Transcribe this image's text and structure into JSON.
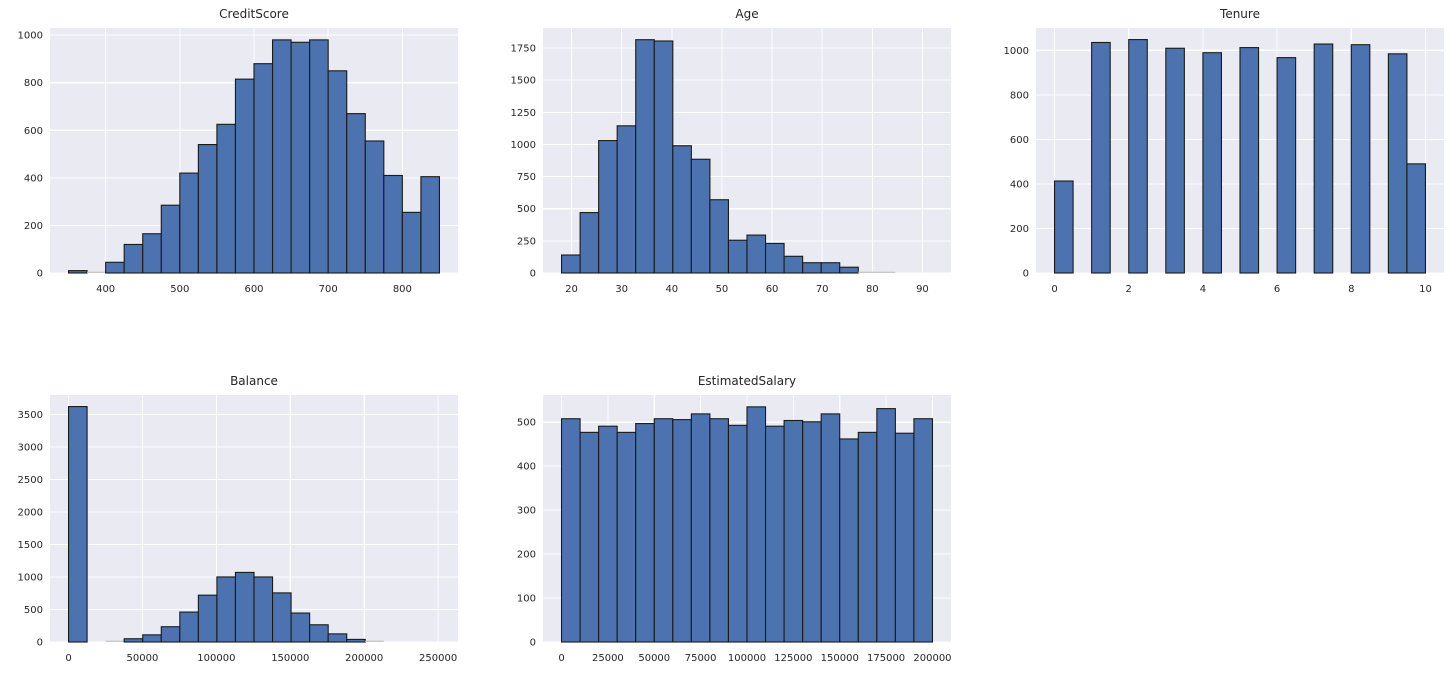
{
  "figure": {
    "kind": "pandas-hist-grid",
    "background": "#ffffff",
    "rows": 2,
    "cols": 3
  },
  "style": {
    "axes_background": "#EAEAF2",
    "grid_color": "#FFFFFF",
    "bar_fill": "#4C72B0",
    "bar_edge": "#1A1A1A",
    "tiny_bar_color": "#C8C8C8",
    "text_color": "#262626",
    "tick_font_size": 10,
    "title_font_size": 12
  },
  "chart_data": [
    {
      "type": "bar",
      "subtype": "histogram",
      "title": "CreditScore",
      "bin_start": 350,
      "bin_width": 25,
      "counts": [
        10,
        2,
        45,
        120,
        165,
        285,
        420,
        540,
        625,
        815,
        880,
        980,
        970,
        980,
        850,
        670,
        555,
        410,
        255,
        405
      ],
      "xlim": [
        325,
        875
      ],
      "ylim": [
        0,
        1030
      ],
      "xticks": [
        400,
        500,
        600,
        700,
        800
      ],
      "xtick_labels": [
        "400",
        "500",
        "600",
        "700",
        "800"
      ],
      "yticks": [
        0,
        200,
        400,
        600,
        800,
        1000
      ],
      "ytick_labels": [
        "0",
        "200",
        "400",
        "600",
        "800",
        "1000"
      ],
      "grid": true,
      "legend": false
    },
    {
      "type": "bar",
      "subtype": "histogram",
      "title": "Age",
      "bin_start": 18,
      "bin_width": 3.7,
      "counts": [
        140,
        470,
        1030,
        1145,
        1815,
        1805,
        990,
        885,
        570,
        255,
        295,
        230,
        130,
        80,
        80,
        45,
        3,
        2,
        0,
        0
      ],
      "xlim": [
        14.3,
        95.7
      ],
      "ylim": [
        0,
        1906
      ],
      "xticks": [
        20,
        30,
        40,
        50,
        60,
        70,
        80,
        90
      ],
      "xtick_labels": [
        "20",
        "30",
        "40",
        "50",
        "60",
        "70",
        "80",
        "90"
      ],
      "yticks": [
        0,
        250,
        500,
        750,
        1000,
        1250,
        1500,
        1750
      ],
      "ytick_labels": [
        "0",
        "250",
        "500",
        "750",
        "1000",
        "1250",
        "1500",
        "1750"
      ],
      "grid": true,
      "legend": false
    },
    {
      "type": "bar",
      "subtype": "histogram",
      "title": "Tenure",
      "bin_start": 0,
      "bin_width": 0.5,
      "counts": [
        413,
        0,
        1035,
        0,
        1048,
        0,
        1009,
        0,
        989,
        0,
        1012,
        0,
        967,
        0,
        1028,
        0,
        1025,
        0,
        984,
        490
      ],
      "xlim": [
        -0.5,
        10.5
      ],
      "ylim": [
        0,
        1100
      ],
      "xticks": [
        0,
        2,
        4,
        6,
        8,
        10
      ],
      "xtick_labels": [
        "0",
        "2",
        "4",
        "6",
        "8",
        "10"
      ],
      "yticks": [
        0,
        200,
        400,
        600,
        800,
        1000
      ],
      "ytick_labels": [
        "0",
        "200",
        "400",
        "600",
        "800",
        "1000"
      ],
      "grid": true,
      "legend": false
    },
    {
      "type": "bar",
      "subtype": "histogram",
      "title": "Balance",
      "bin_start": 0,
      "bin_width": 12545,
      "counts": [
        3620,
        0,
        15,
        50,
        110,
        235,
        460,
        720,
        1000,
        1070,
        1000,
        755,
        445,
        265,
        125,
        40,
        18,
        0,
        0,
        0
      ],
      "xlim": [
        -12545,
        263443
      ],
      "ylim": [
        0,
        3798
      ],
      "xticks": [
        0,
        50000,
        100000,
        150000,
        200000,
        250000
      ],
      "xtick_labels": [
        "0",
        "50000",
        "100000",
        "150000",
        "200000",
        "250000"
      ],
      "yticks": [
        0,
        500,
        1000,
        1500,
        2000,
        2500,
        3000,
        3500
      ],
      "ytick_labels": [
        "0",
        "500",
        "1000",
        "1500",
        "2000",
        "2500",
        "3000",
        "3500"
      ],
      "grid": true,
      "legend": false
    },
    {
      "type": "bar",
      "subtype": "histogram",
      "title": "EstimatedSalary",
      "bin_start": 0,
      "bin_width": 10000,
      "counts": [
        508,
        477,
        491,
        477,
        497,
        508,
        506,
        519,
        508,
        493,
        535,
        491,
        504,
        501,
        519,
        462,
        477,
        531,
        475,
        508
      ],
      "xlim": [
        -9988,
        209990
      ],
      "ylim": [
        0,
        562
      ],
      "xticks": [
        0,
        25000,
        50000,
        75000,
        100000,
        125000,
        150000,
        175000,
        200000
      ],
      "xtick_labels": [
        "0",
        "25000",
        "50000",
        "75000",
        "100000",
        "125000",
        "150000",
        "175000",
        "200000"
      ],
      "yticks": [
        0,
        100,
        200,
        300,
        400,
        500
      ],
      "ytick_labels": [
        "0",
        "100",
        "200",
        "300",
        "400",
        "500"
      ],
      "grid": true,
      "legend": false
    }
  ]
}
